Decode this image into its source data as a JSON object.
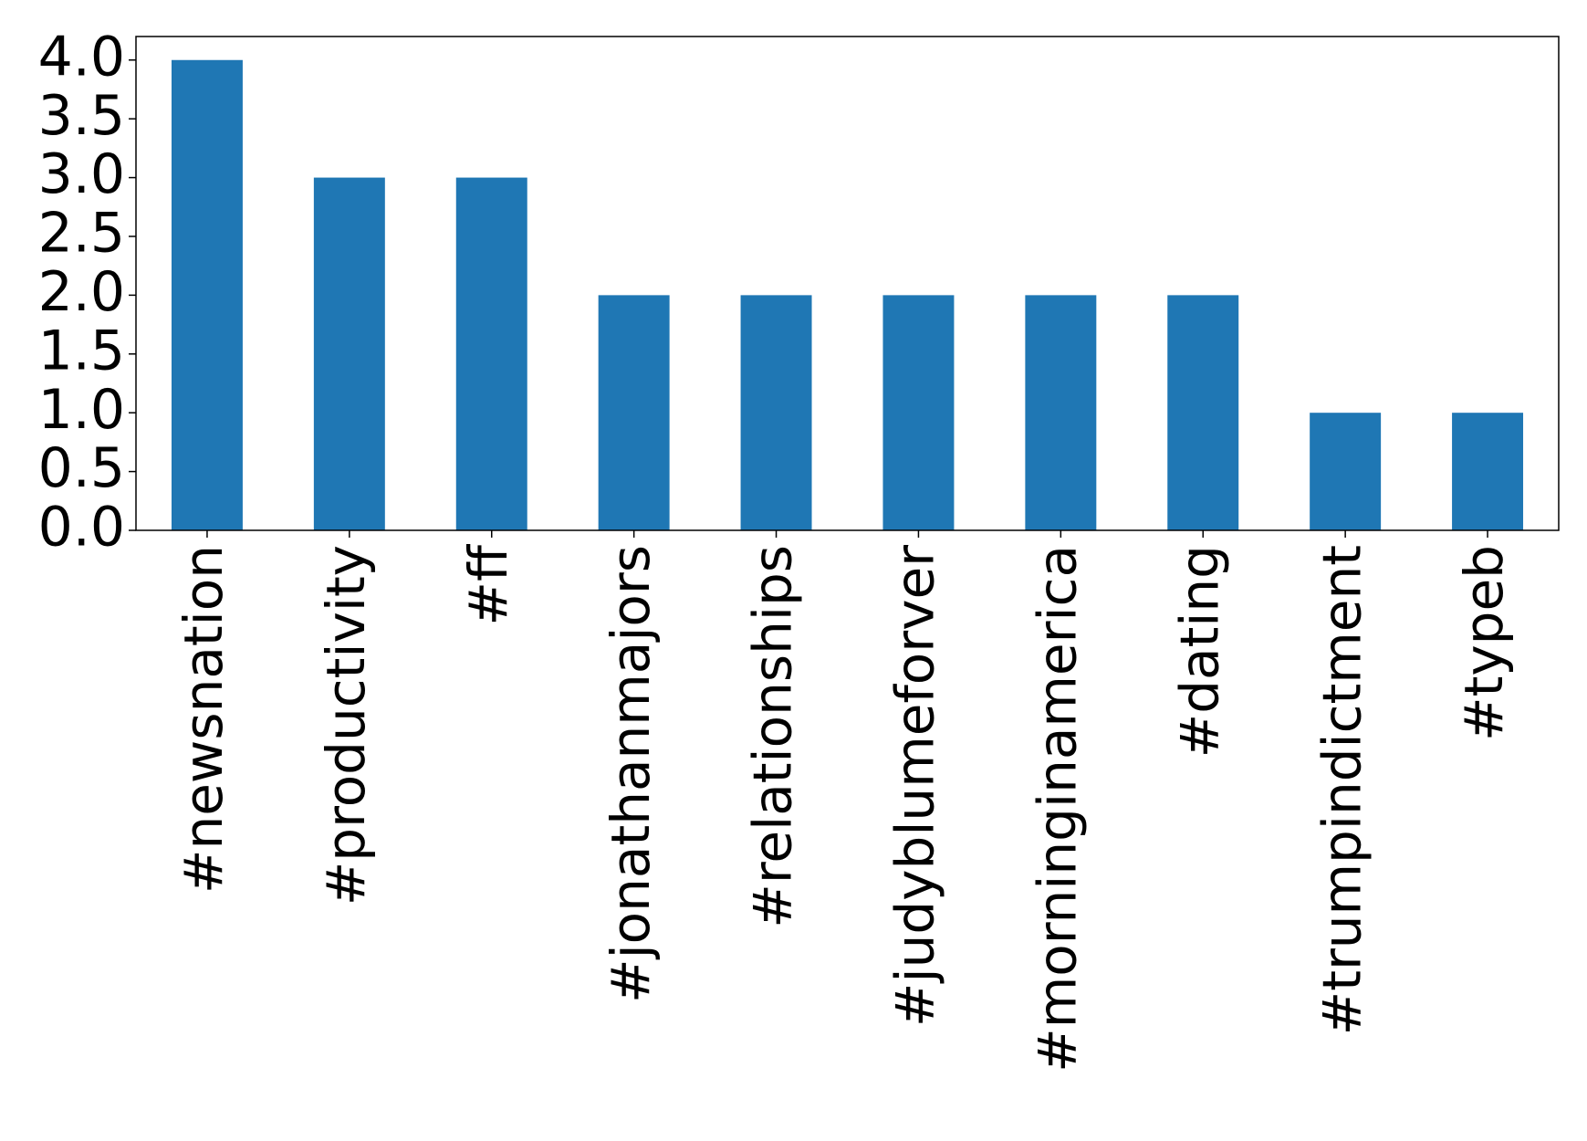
{
  "chart_data": {
    "type": "bar",
    "categories": [
      "#newsnation",
      "#productivity",
      "#ff",
      "#jonathanmajors",
      "#relationships",
      "#judyblumeforver",
      "#morninginamerica",
      "#dating",
      "#trumpindictment",
      "#typeb"
    ],
    "values": [
      4,
      3,
      3,
      2,
      2,
      2,
      2,
      2,
      1,
      1
    ],
    "color": "#1f77b4",
    "ylim": [
      0,
      4.2
    ],
    "yticks": [
      {
        "value": 0,
        "label": "0.0"
      },
      {
        "value": 0.5,
        "label": "0.5"
      },
      {
        "value": 1,
        "label": "1.0"
      },
      {
        "value": 1.5,
        "label": "1.5"
      },
      {
        "value": 2,
        "label": "2.0"
      },
      {
        "value": 2.5,
        "label": "2.5"
      },
      {
        "value": 3,
        "label": "3.0"
      },
      {
        "value": 3.5,
        "label": "3.5"
      },
      {
        "value": 4,
        "label": "4.0"
      }
    ],
    "grid": false
  }
}
